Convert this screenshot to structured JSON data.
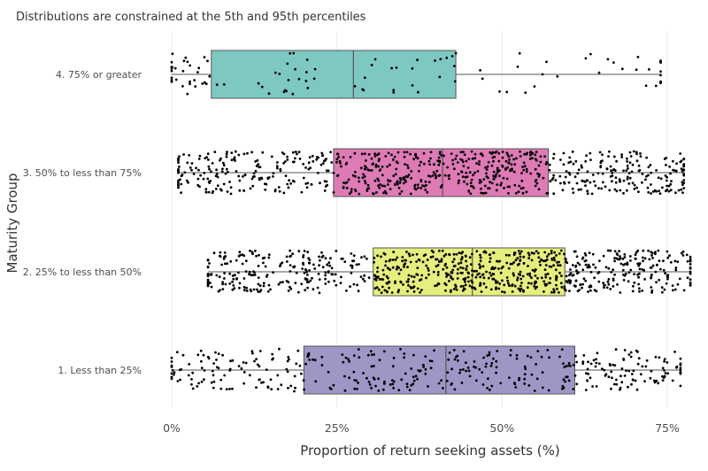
{
  "chart_data": {
    "type": "boxplot",
    "subtitle": "Distributions are constrained at the 5th and 95th percentiles",
    "xlabel": "Proportion of return seeking assets (%)",
    "ylabel": "Maturity Group",
    "xlim": [
      -3,
      79
    ],
    "xticks": [
      0,
      25,
      50,
      75
    ],
    "xtick_labels": [
      "0%",
      "25%",
      "50%",
      "75%"
    ],
    "grid": "vertical",
    "overlay": "jittered points",
    "categories": [
      "4. 75% or greater",
      "3. 50% to less than 75%",
      "2. 25% to less than 50%",
      "1. Less than 25%"
    ],
    "series": [
      {
        "category": "4. 75% or greater",
        "whisker_low": 0,
        "q1": 6,
        "median": 27.5,
        "q3": 43,
        "whisker_high": 74,
        "color": "#7ec8c2",
        "points": 90
      },
      {
        "category": "3. 50% to less than 75%",
        "whisker_low": 1,
        "q1": 24.5,
        "median": 41,
        "q3": 57,
        "whisker_high": 77.5,
        "color": "#de7bb6",
        "points": 750
      },
      {
        "category": "2. 25% to less than 50%",
        "whisker_low": 5.5,
        "q1": 30.5,
        "median": 45.5,
        "q3": 59.5,
        "whisker_high": 78.5,
        "color": "#e6ee7e",
        "points": 850
      },
      {
        "category": "1. Less than 25%",
        "whisker_low": 0,
        "q1": 20,
        "median": 41.5,
        "q3": 61,
        "whisker_high": 77,
        "color": "#9d97c6",
        "points": 380
      }
    ]
  }
}
